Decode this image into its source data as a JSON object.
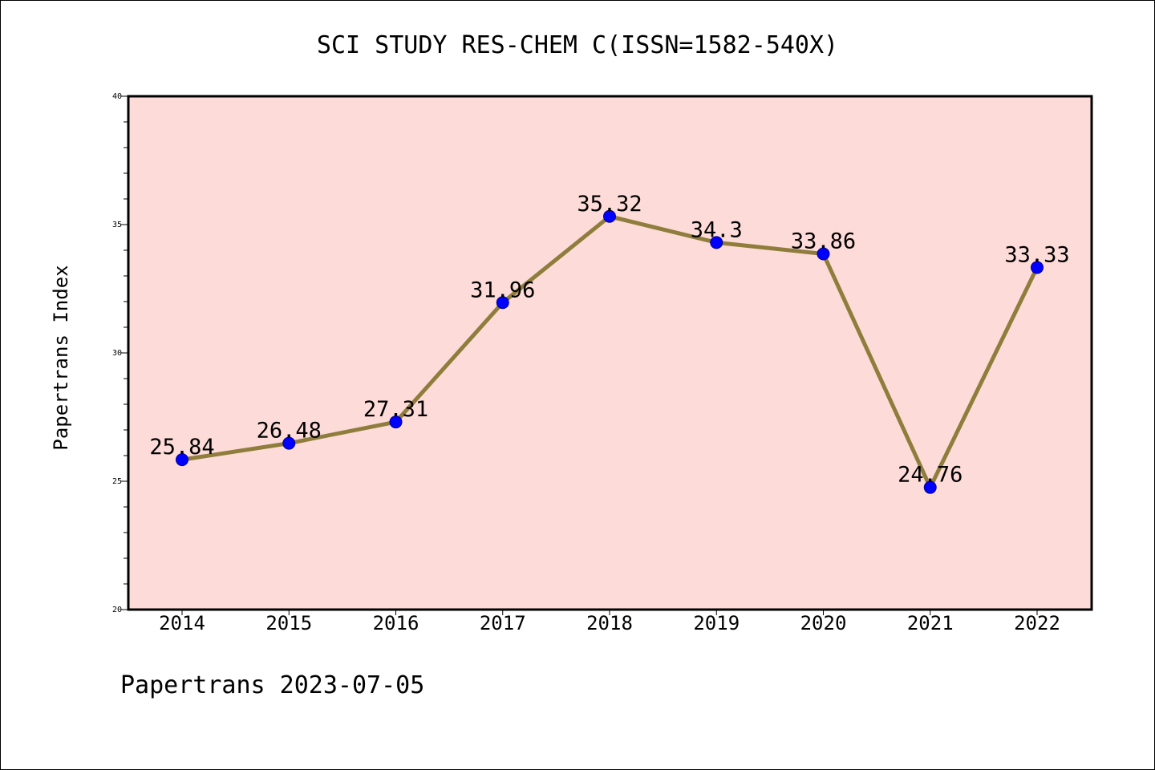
{
  "chart_data": {
    "type": "line",
    "title": "SCI STUDY RES-CHEM C(ISSN=1582-540X)",
    "xlabel": "",
    "ylabel": "Papertrans Index",
    "categories": [
      "2014",
      "2015",
      "2016",
      "2017",
      "2018",
      "2019",
      "2020",
      "2021",
      "2022"
    ],
    "series": [
      {
        "values": [
          25.84,
          26.48,
          27.31,
          31.96,
          35.32,
          34.3,
          33.86,
          24.76,
          33.33
        ],
        "labels": [
          "25.84",
          "26.48",
          "27.31",
          "31.96",
          "35.32",
          "34.3",
          "33.86",
          "24.76",
          "33.33"
        ]
      }
    ],
    "ylim": [
      20,
      40
    ],
    "y_ticks": [
      20,
      25,
      30,
      35,
      40
    ],
    "y_minor_step": 1,
    "grid": false,
    "legend": "none",
    "colors": {
      "plot_background": "#fddbd8",
      "line": "#8f7d3c",
      "marker": "#0000ff",
      "axis": "#000000"
    }
  },
  "footer": "Papertrans 2023-07-05"
}
